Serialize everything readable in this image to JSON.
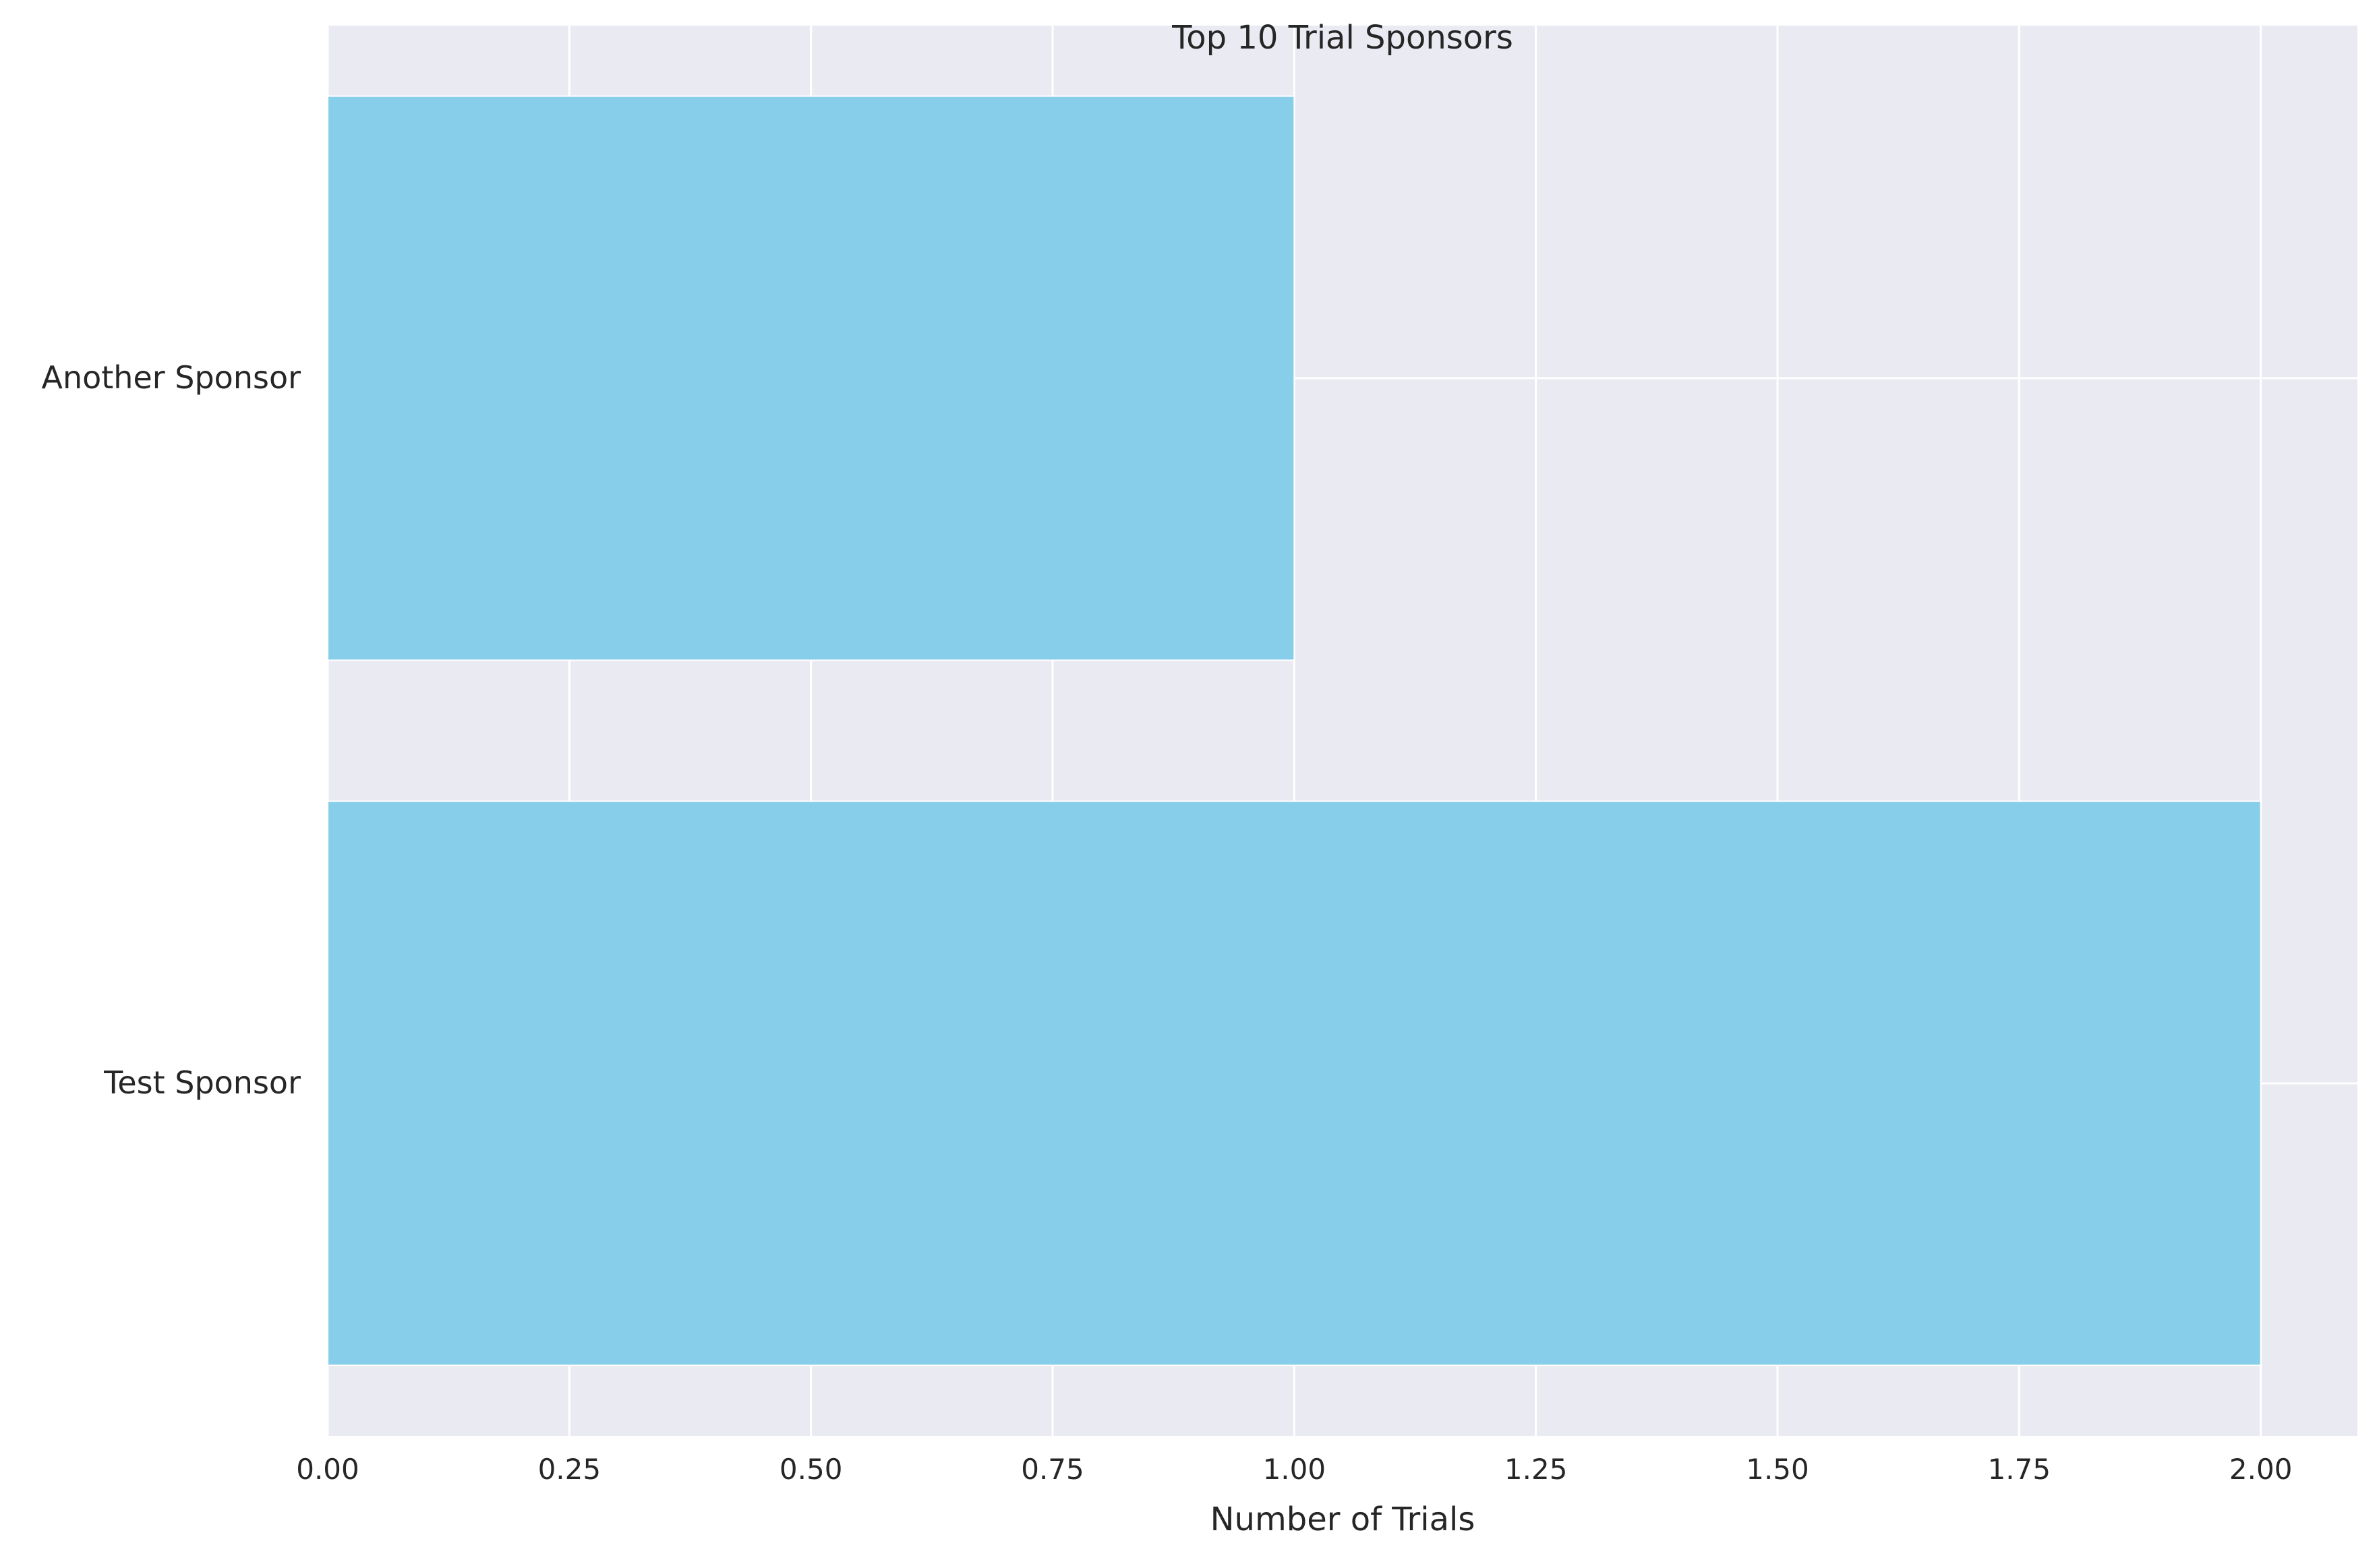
{
  "chart_data": {
    "type": "bar",
    "orientation": "horizontal",
    "title": "Top 10 Trial Sponsors",
    "xlabel": "Number of Trials",
    "ylabel": "",
    "categories": [
      "Test Sponsor",
      "Another Sponsor"
    ],
    "values": [
      2,
      1
    ],
    "xlim": [
      0,
      2.1
    ],
    "xticks": [
      "0.00",
      "0.25",
      "0.50",
      "0.75",
      "1.00",
      "1.25",
      "1.50",
      "1.75",
      "2.00"
    ],
    "grid": true,
    "legend": "none",
    "colors": {
      "bar": "#87ceeb",
      "plot_background": "#eaeaf2",
      "grid": "#ffffff",
      "text": "#262626"
    }
  }
}
